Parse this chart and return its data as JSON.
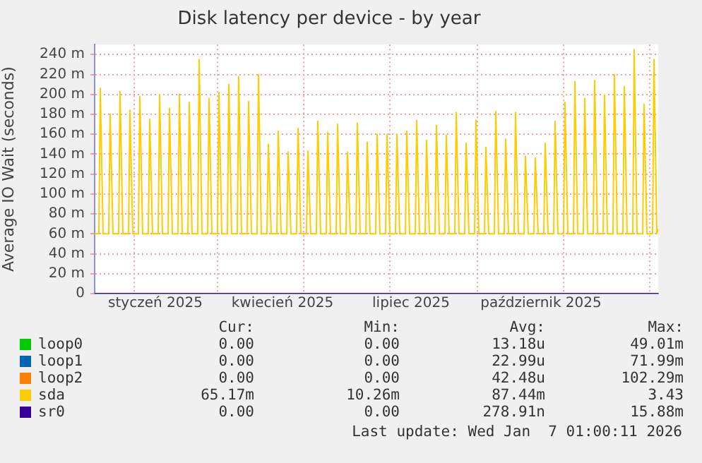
{
  "chart_data": {
    "type": "line",
    "title": "Disk latency per device - by year",
    "ylabel": "Average IO Wait (seconds)",
    "xlim": [
      "2024-12-04",
      "2026-01-07"
    ],
    "xticks": [
      {
        "value": "2025-01-01",
        "label": null
      },
      {
        "value": "2025-01-16",
        "label": "styczeń 2025"
      },
      {
        "value": "2025-03-01",
        "label": null
      },
      {
        "value": "2025-04-16",
        "label": "kwiecień 2025"
      },
      {
        "value": "2025-05-01",
        "label": null
      },
      {
        "value": "2025-07-01",
        "label": null
      },
      {
        "value": "2025-07-16",
        "label": "lipiec 2025"
      },
      {
        "value": "2025-09-01",
        "label": null
      },
      {
        "value": "2025-10-16",
        "label": "październik 2025"
      },
      {
        "value": "2025-11-01",
        "label": null
      },
      {
        "value": "2026-01-01",
        "label": null
      }
    ],
    "ylim": [
      0,
      250
    ],
    "yticks": [
      0,
      {
        "value": 20,
        "label": "20 m"
      },
      {
        "value": 40,
        "label": "40 m"
      },
      {
        "value": 60,
        "label": "60 m"
      },
      {
        "value": 80,
        "label": "80 m"
      },
      {
        "value": 100,
        "label": "100 m"
      },
      {
        "value": 120,
        "label": "120 m"
      },
      {
        "value": 140,
        "label": "140 m"
      },
      {
        "value": 160,
        "label": "160 m"
      },
      {
        "value": 180,
        "label": "180 m"
      },
      {
        "value": 200,
        "label": "200 m"
      },
      {
        "value": 220,
        "label": "220 m"
      },
      {
        "value": 240,
        "label": "240 m"
      }
    ],
    "grid": true,
    "legend": "bottom",
    "marker": "none",
    "line_style": "solid",
    "series": [
      {
        "name": "loop0",
        "color": "#00cc00"
      },
      {
        "name": "loop1",
        "color": "#0066b3"
      },
      {
        "name": "loop2",
        "color": "#ff8000"
      },
      {
        "name": "sda",
        "color": "#ffcc00",
        "x": [
          "2024-12-04",
          "2024-12-07",
          "2024-12-08",
          "2024-12-10",
          "2024-12-14",
          "2024-12-15",
          "2024-12-17",
          "2024-12-21",
          "2024-12-22",
          "2024-12-24",
          "2024-12-28",
          "2024-12-29",
          "2024-12-31",
          "2025-01-04",
          "2025-01-05",
          "2025-01-07",
          "2025-01-11",
          "2025-01-12",
          "2025-01-14",
          "2025-01-18",
          "2025-01-19",
          "2025-01-21",
          "2025-01-25",
          "2025-01-26",
          "2025-01-28",
          "2025-02-01",
          "2025-02-02",
          "2025-02-04",
          "2025-02-08",
          "2025-02-09",
          "2025-02-11",
          "2025-02-15",
          "2025-02-16",
          "2025-02-18",
          "2025-02-22",
          "2025-02-23",
          "2025-02-25",
          "2025-03-01",
          "2025-03-02",
          "2025-03-04",
          "2025-03-08",
          "2025-03-09",
          "2025-03-11",
          "2025-03-15",
          "2025-03-16",
          "2025-03-18",
          "2025-03-22",
          "2025-03-23",
          "2025-03-25",
          "2025-03-29",
          "2025-03-30",
          "2025-04-01",
          "2025-04-05",
          "2025-04-06",
          "2025-04-08",
          "2025-04-12",
          "2025-04-13",
          "2025-04-15",
          "2025-04-19",
          "2025-04-20",
          "2025-04-22",
          "2025-04-26",
          "2025-04-27",
          "2025-04-29",
          "2025-05-03",
          "2025-05-04",
          "2025-05-06",
          "2025-05-10",
          "2025-05-11",
          "2025-05-13",
          "2025-05-17",
          "2025-05-18",
          "2025-05-20",
          "2025-05-24",
          "2025-05-25",
          "2025-05-27",
          "2025-05-31",
          "2025-06-01",
          "2025-06-03",
          "2025-06-07",
          "2025-06-08",
          "2025-06-10",
          "2025-06-14",
          "2025-06-15",
          "2025-06-17",
          "2025-06-21",
          "2025-06-22",
          "2025-06-24",
          "2025-06-28",
          "2025-06-29",
          "2025-07-01",
          "2025-07-05",
          "2025-07-06",
          "2025-07-08",
          "2025-07-12",
          "2025-07-13",
          "2025-07-15",
          "2025-07-19",
          "2025-07-20",
          "2025-07-22",
          "2025-07-26",
          "2025-07-27",
          "2025-07-29",
          "2025-08-02",
          "2025-08-03",
          "2025-08-05",
          "2025-08-09",
          "2025-08-10",
          "2025-08-12",
          "2025-08-16",
          "2025-08-17",
          "2025-08-19",
          "2025-08-23",
          "2025-08-24",
          "2025-08-26",
          "2025-08-30",
          "2025-08-31",
          "2025-09-02",
          "2025-09-06",
          "2025-09-07",
          "2025-09-09",
          "2025-09-13",
          "2025-09-14",
          "2025-09-16",
          "2025-09-20",
          "2025-09-21",
          "2025-09-23",
          "2025-09-27",
          "2025-09-28",
          "2025-09-30",
          "2025-10-04",
          "2025-10-05",
          "2025-10-07",
          "2025-10-11",
          "2025-10-12",
          "2025-10-14",
          "2025-10-18",
          "2025-10-19",
          "2025-10-21",
          "2025-10-25",
          "2025-10-26",
          "2025-10-28",
          "2025-11-01",
          "2025-11-02",
          "2025-11-04",
          "2025-11-08",
          "2025-11-09",
          "2025-11-11",
          "2025-11-15",
          "2025-11-16",
          "2025-11-18",
          "2025-11-22",
          "2025-11-23",
          "2025-11-25",
          "2025-11-29",
          "2025-11-30",
          "2025-12-02",
          "2025-12-06",
          "2025-12-07",
          "2025-12-09",
          "2025-12-13",
          "2025-12-14",
          "2025-12-16",
          "2025-12-20",
          "2025-12-21",
          "2025-12-23",
          "2025-12-27",
          "2025-12-28",
          "2025-12-30",
          "2026-01-03",
          "2026-01-04",
          "2026-01-06",
          "2026-01-07"
        ],
        "values": [
          60,
          60,
          206,
          60,
          60,
          180,
          60,
          60,
          203,
          60,
          60,
          184,
          60,
          60,
          198,
          60,
          60,
          175,
          60,
          60,
          200,
          60,
          60,
          186,
          60,
          60,
          200,
          60,
          60,
          192,
          60,
          60,
          235,
          60,
          60,
          196,
          60,
          60,
          202,
          60,
          60,
          210,
          60,
          60,
          218,
          60,
          60,
          193,
          60,
          60,
          220,
          60,
          60,
          150,
          60,
          60,
          163,
          60,
          60,
          142,
          60,
          60,
          166,
          60,
          60,
          143,
          60,
          60,
          173,
          60,
          60,
          162,
          60,
          60,
          170,
          60,
          60,
          142,
          60,
          60,
          171,
          60,
          60,
          152,
          60,
          60,
          160,
          60,
          60,
          160,
          60,
          60,
          160,
          60,
          60,
          163,
          60,
          60,
          174,
          60,
          60,
          154,
          60,
          60,
          169,
          60,
          60,
          159,
          60,
          60,
          182,
          60,
          60,
          151,
          60,
          60,
          174,
          60,
          60,
          147,
          60,
          60,
          183,
          60,
          60,
          155,
          60,
          60,
          182,
          60,
          60,
          138,
          60,
          60,
          136,
          60,
          60,
          151,
          60,
          60,
          173,
          60,
          60,
          192,
          60,
          60,
          213,
          60,
          60,
          196,
          60,
          60,
          214,
          60,
          60,
          200,
          60,
          60,
          220,
          60,
          60,
          208,
          60,
          60,
          245,
          60,
          60,
          190,
          60,
          60,
          235,
          60,
          65
        ]
      },
      {
        "name": "sr0",
        "color": "#330099",
        "x": [
          "2024-12-04",
          "2026-01-07"
        ],
        "values": [
          0,
          0
        ]
      }
    ],
    "annotations": [
      "Cur:",
      "Min:",
      "Avg:",
      "Max:",
      "0.00",
      "0.00",
      "13.18u",
      "49.01m",
      "0.00",
      "0.00",
      "22.99u",
      "71.99m",
      "0.00",
      "0.00",
      "42.48u",
      "102.29m",
      "65.17m",
      "10.26m",
      "87.44m",
      "3.43",
      "0.00",
      "0.00",
      "278.91n",
      "15.88m",
      "Last update: Wed Jan  7 01:00:11 2026"
    ]
  }
}
